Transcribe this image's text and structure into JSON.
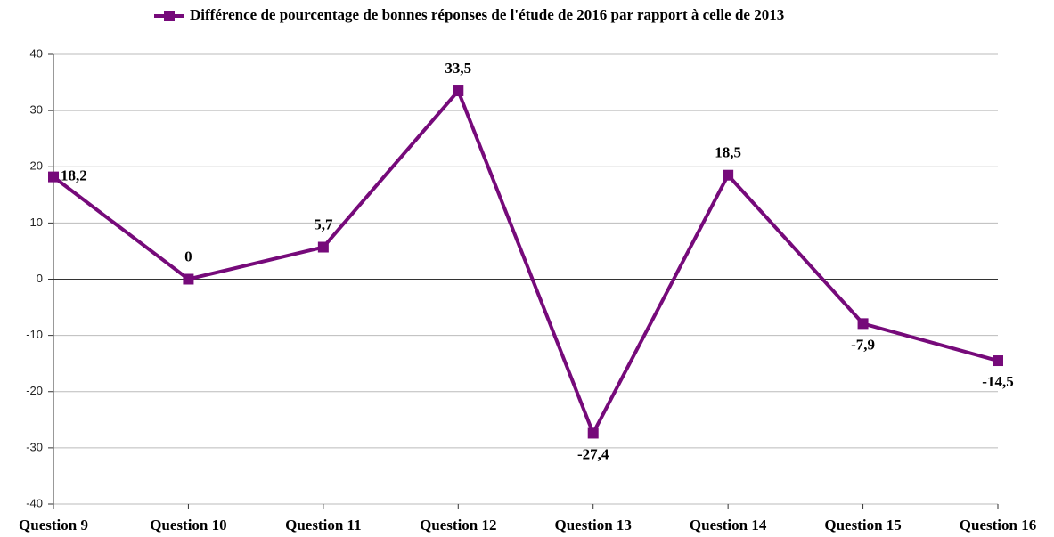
{
  "chart_data": {
    "type": "line",
    "categories": [
      "Question 9",
      "Question 10",
      "Question 11",
      "Question 12",
      "Question 13",
      "Question 14",
      "Question 15",
      "Question 16"
    ],
    "series": [
      {
        "name": "Différence de pourcentage de bonnes réponses de l'étude de 2016 par rapport à celle de 2013",
        "color": "#760a7a",
        "values": [
          18.2,
          0,
          5.7,
          33.5,
          -27.4,
          18.5,
          -7.9,
          -14.5
        ],
        "value_labels": [
          "18,2",
          "0",
          "5,7",
          "33,5",
          "-27,4",
          "18,5",
          "-7,9",
          "-14,5"
        ]
      }
    ],
    "ylim": [
      -40,
      40
    ],
    "yticks": [
      -40,
      -30,
      -20,
      -10,
      0,
      10,
      20,
      30,
      40
    ],
    "grid": true,
    "legend": "top"
  }
}
